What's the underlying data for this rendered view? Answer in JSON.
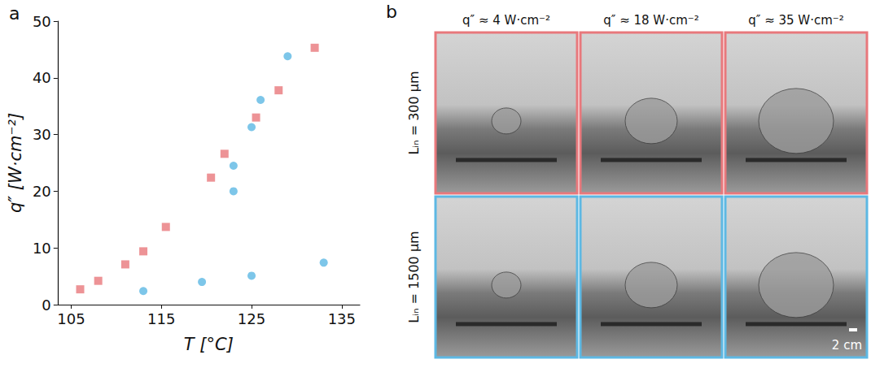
{
  "chart_data": {
    "type": "scatter",
    "panel_label": "a",
    "x_label": "T [°C]",
    "y_label": "q″ [W·cm⁻²]",
    "xlim": [
      103.5,
      137
    ],
    "xticks": [
      105,
      115,
      125,
      135
    ],
    "ylim": [
      0,
      50
    ],
    "yticks": [
      0,
      10,
      20,
      30,
      40,
      50
    ],
    "grid": false,
    "series": [
      {
        "color": "#e8787c",
        "marker": "square",
        "x": [
          106,
          108,
          111,
          113,
          115.5,
          120.5,
          122,
          125.5,
          128,
          132
        ],
        "values": [
          2.7,
          4.2,
          7.1,
          9.4,
          13.7,
          22.4,
          26.6,
          33,
          37.8,
          45.3
        ]
      },
      {
        "color": "#5db8e3",
        "marker": "circle",
        "x": [
          113,
          119.5,
          125,
          133,
          123,
          123,
          125,
          126,
          129
        ],
        "values": [
          2.4,
          4,
          5.1,
          7.4,
          24.5,
          20,
          31.3,
          36.1,
          43.8
        ]
      }
    ]
  },
  "photo_panel": {
    "panel_label": "b",
    "columns": [
      "q″ ≈ 4 W·cm⁻²",
      "q″ ≈ 18 W·cm⁻²",
      "q″ ≈ 35 W·cm⁻²"
    ],
    "rows": [
      {
        "label": "Lᵢₙ = 300 µm",
        "color": "#e8787c"
      },
      {
        "label": "Lᵢₙ = 1500 µm",
        "color": "#5db8e3"
      }
    ],
    "scale_bar": "2 cm"
  }
}
